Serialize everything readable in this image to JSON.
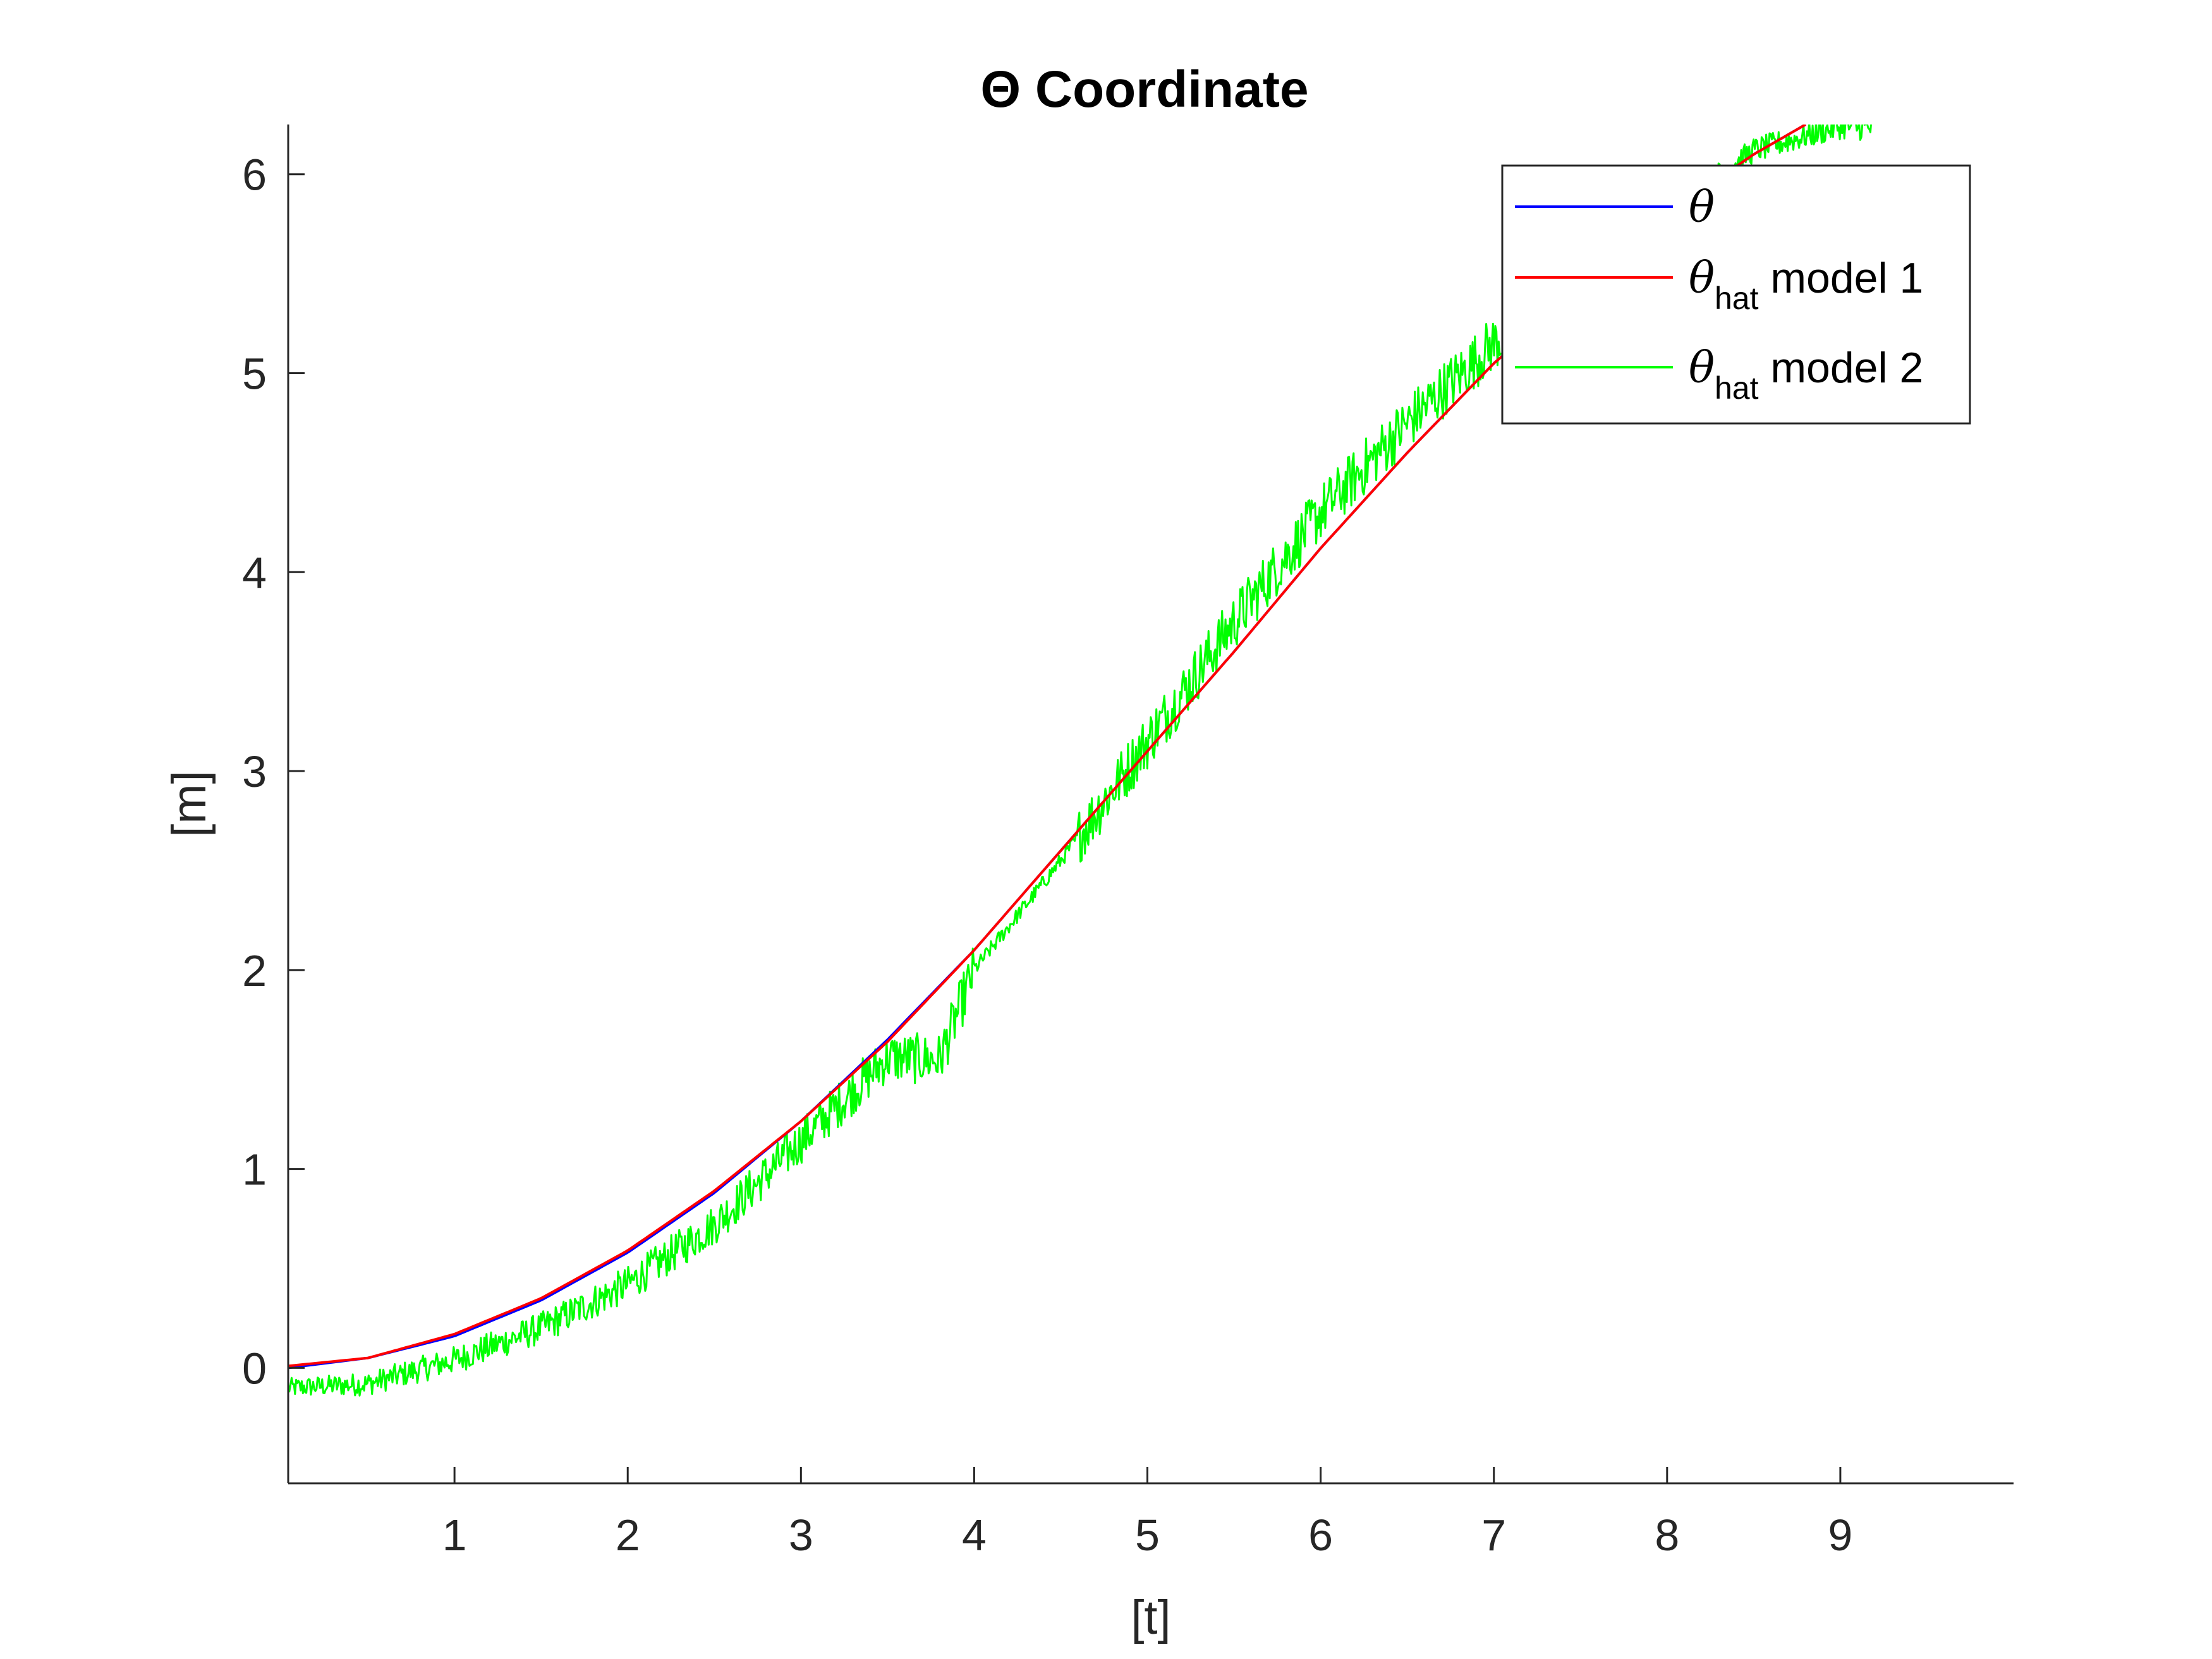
{
  "chart_data": {
    "type": "line",
    "title": "Θ Coordinate",
    "xlabel": "[t]",
    "ylabel": "[m]",
    "xlim": [
      0.04,
      10
    ],
    "ylim": [
      -0.58,
      6.25
    ],
    "xticks": [
      1,
      2,
      3,
      4,
      5,
      6,
      7,
      8,
      9
    ],
    "yticks": [
      0,
      1,
      2,
      3,
      4,
      5,
      6
    ],
    "xtick_labels": [
      "1",
      "2",
      "3",
      "4",
      "5",
      "6",
      "7",
      "8",
      "9"
    ],
    "ytick_labels": [
      "0",
      "1",
      "2",
      "3",
      "4",
      "5",
      "6"
    ],
    "grid": false,
    "legend_position": "top-right",
    "series": [
      {
        "name": "θ",
        "legend_symbol": "θ",
        "legend_subscript": "",
        "legend_suffix": "",
        "color": "#0000ff",
        "x": [
          0.04,
          0.5,
          1.0,
          1.5,
          2.0,
          2.5,
          3.0,
          3.5,
          4.0,
          4.5,
          5.0,
          5.5,
          6.0,
          6.5,
          7.0,
          7.5,
          8.0,
          8.5,
          8.8
        ],
        "y": [
          0.0,
          0.05,
          0.16,
          0.34,
          0.58,
          0.88,
          1.24,
          1.65,
          2.1,
          2.6,
          3.1,
          3.6,
          4.12,
          4.6,
          5.05,
          5.42,
          5.8,
          6.1,
          6.25
        ]
      },
      {
        "name": "θhat model 1",
        "legend_symbol": "θ",
        "legend_subscript": "hat",
        "legend_suffix": " model 1",
        "color": "#ff0000",
        "x": [
          0.04,
          0.5,
          1.0,
          1.5,
          2.0,
          2.5,
          3.0,
          3.5,
          4.0,
          4.5,
          5.0,
          5.5,
          6.0,
          6.5,
          7.0,
          7.5,
          8.0,
          8.5,
          8.8
        ],
        "y": [
          0.01,
          0.05,
          0.17,
          0.35,
          0.59,
          0.89,
          1.24,
          1.64,
          2.1,
          2.6,
          3.1,
          3.6,
          4.12,
          4.6,
          5.05,
          5.42,
          5.8,
          6.1,
          6.25
        ]
      },
      {
        "name": "θhat model 2",
        "legend_symbol": "θ",
        "legend_subscript": "hat",
        "legend_suffix": " model 2",
        "color": "#00ff00",
        "x": [
          0.04,
          0.5,
          1.0,
          1.5,
          2.0,
          2.5,
          3.0,
          3.5,
          3.8,
          4.0,
          4.5,
          5.0,
          5.5,
          6.0,
          6.5,
          7.0,
          7.5,
          8.0,
          8.5,
          9.0,
          9.2
        ],
        "y": [
          -0.1,
          -0.08,
          0.04,
          0.2,
          0.42,
          0.72,
          1.14,
          1.56,
          1.55,
          2.0,
          2.55,
          3.15,
          3.75,
          4.3,
          4.75,
          5.15,
          5.45,
          5.82,
          6.12,
          6.24,
          6.23
        ]
      }
    ]
  }
}
